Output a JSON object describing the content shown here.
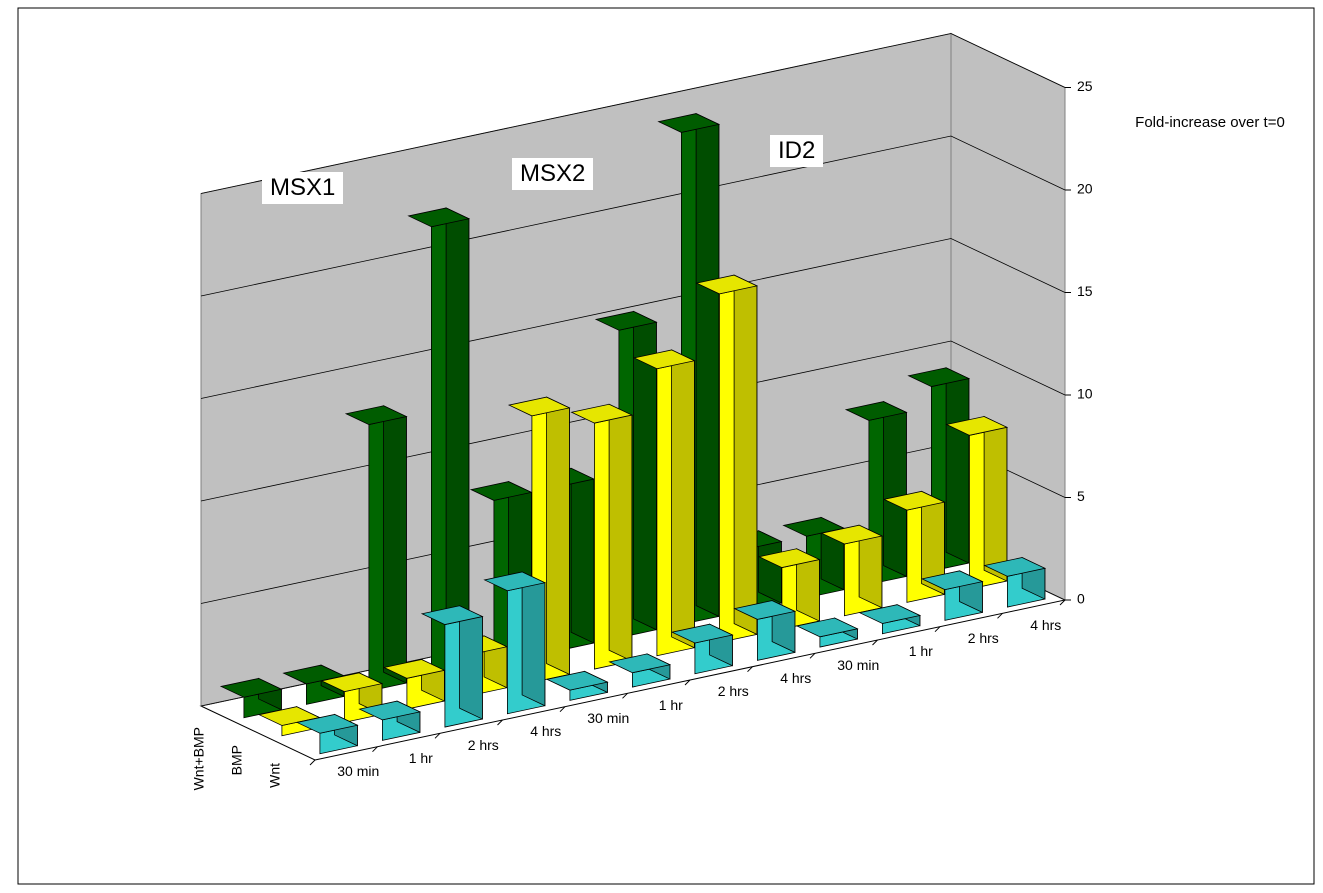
{
  "chart_data": {
    "type": "bar3d",
    "categories": [
      "30 min",
      "1 hr",
      "2 hrs",
      "4 hrs",
      "30 min",
      "1 hr",
      "2 hrs",
      "4 hrs",
      "30 min",
      "1 hr",
      "2 hrs",
      "4 hrs"
    ],
    "series": [
      {
        "name": "Wnt+BMP",
        "color": "#006600",
        "values": [
          1,
          1,
          13,
          22,
          8,
          8,
          15,
          24,
          3,
          3,
          8,
          9
        ]
      },
      {
        "name": "BMP",
        "color": "#ffff00",
        "values": [
          0.5,
          1.5,
          1.5,
          2,
          13,
          12,
          14,
          17,
          3,
          3.5,
          4.5,
          7.5
        ]
      },
      {
        "name": "Wnt",
        "color": "#33cccc",
        "values": [
          1,
          1,
          5,
          6,
          0.5,
          0.7,
          1.5,
          2,
          0.5,
          0.5,
          1.5,
          1.5
        ]
      }
    ],
    "ylim": [
      0,
      25
    ],
    "yticks": [
      0,
      5,
      10,
      15,
      20,
      25
    ],
    "grid": true,
    "y_axis_label": "Fold-increase over t=0",
    "annotations": [
      "MSX1",
      "MSX2",
      "ID2"
    ]
  }
}
